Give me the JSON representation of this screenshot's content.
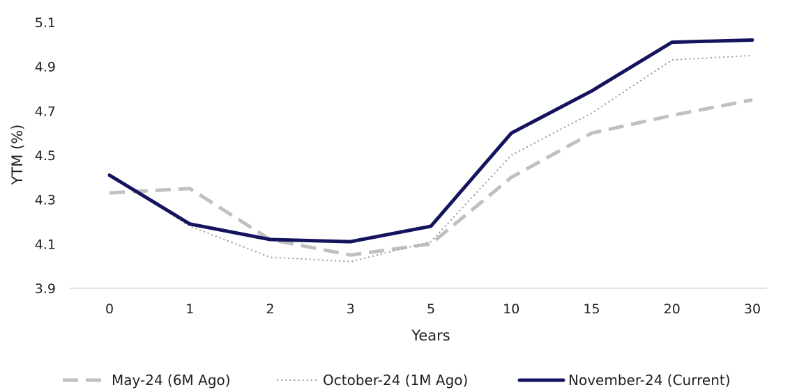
{
  "chart_data": {
    "type": "line",
    "categories": [
      "0",
      "1",
      "2",
      "3",
      "5",
      "10",
      "15",
      "20",
      "30"
    ],
    "series": [
      {
        "name": "May-24 (6M Ago)",
        "values": [
          4.33,
          4.35,
          4.12,
          4.05,
          4.1,
          4.4,
          4.6,
          4.68,
          4.75
        ],
        "color": "#c0c0c0",
        "style": "dashed"
      },
      {
        "name": "October-24 (1M Ago)",
        "values": [
          4.41,
          4.18,
          4.04,
          4.02,
          4.11,
          4.5,
          4.69,
          4.93,
          4.95
        ],
        "color": "#9a9a9a",
        "style": "dotted"
      },
      {
        "name": "November-24 (Current)",
        "values": [
          4.41,
          4.19,
          4.12,
          4.11,
          4.18,
          4.6,
          4.79,
          5.01,
          5.02
        ],
        "color": "#14145e",
        "style": "solid"
      }
    ],
    "xlabel": "Years",
    "ylabel": "YTM (%)",
    "ylim": [
      3.9,
      5.1
    ],
    "yticks": [
      "3.9",
      "4.1",
      "4.3",
      "4.5",
      "4.7",
      "4.9",
      "5.1"
    ],
    "grid": false,
    "legend": "bottom"
  }
}
